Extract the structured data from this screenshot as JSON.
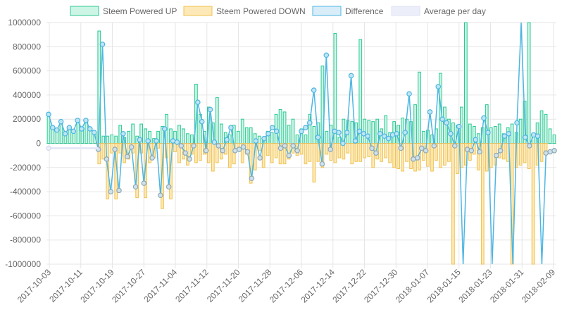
{
  "chart_data": {
    "type": "bar",
    "title": "",
    "xlabel": "",
    "ylabel": "",
    "ylim": [
      -1000000,
      1000000
    ],
    "y_ticks": [
      1000000,
      800000,
      600000,
      400000,
      200000,
      0,
      -200000,
      -400000,
      -600000,
      -800000,
      -1000000
    ],
    "x_tick_labels": [
      "2017-10-03",
      "2017-10-11",
      "2017-10-19",
      "2017-10-27",
      "2017-11-04",
      "2017-11-12",
      "2017-11-20",
      "2017-11-28",
      "2017-12-06",
      "2017-12-14",
      "2017-12-22",
      "2017-12-30",
      "2018-01-07",
      "2018-01-15",
      "2018-01-23",
      "2018-01-31",
      "2018-02-09"
    ],
    "legend_position": "top-center",
    "grid": true,
    "series": [
      {
        "name": "Steem Powered UP",
        "kind": "bar",
        "fill": "#cdf5e6",
        "stroke": "#2bc993",
        "values": [
          240000,
          120000,
          110000,
          180000,
          80000,
          130000,
          100000,
          190000,
          120000,
          190000,
          110000,
          90000,
          930000,
          60000,
          60000,
          70000,
          60000,
          150000,
          50000,
          100000,
          160000,
          60000,
          160000,
          120000,
          100000,
          40000,
          100000,
          140000,
          240000,
          120000,
          100000,
          150000,
          120000,
          80000,
          70000,
          490000,
          240000,
          100000,
          300000,
          170000,
          380000,
          160000,
          90000,
          70000,
          150000,
          100000,
          200000,
          130000,
          130000,
          80000,
          60000,
          50000,
          100000,
          90000,
          240000,
          280000,
          260000,
          150000,
          200000,
          70000,
          120000,
          70000,
          240000,
          140000,
          170000,
          640000,
          100000,
          150000,
          910000,
          50000,
          200000,
          190000,
          180000,
          170000,
          860000,
          200000,
          190000,
          180000,
          200000,
          120000,
          230000,
          90000,
          180000,
          150000,
          210000,
          200000,
          180000,
          320000,
          590000,
          100000,
          110000,
          70000,
          120000,
          580000,
          300000,
          200000,
          170000,
          150000,
          300000,
          1000000,
          160000,
          140000,
          80000,
          130000,
          320000,
          130000,
          140000,
          160000,
          80000,
          130000,
          160000,
          90000,
          200000,
          350000,
          1000000,
          60000,
          170000,
          270000,
          240000,
          120000,
          70000
        ],
        "down_values": []
      },
      {
        "name": "Steem Powered DOWN",
        "kind": "bar",
        "fill": "#fde9b7",
        "stroke": "#f0c24f",
        "values": [
          0,
          0,
          0,
          0,
          0,
          0,
          0,
          0,
          0,
          0,
          0,
          0,
          -170000,
          -130000,
          -460000,
          -80000,
          -460000,
          -80000,
          -160000,
          -130000,
          -80000,
          -450000,
          -80000,
          -450000,
          -160000,
          -120000,
          -40000,
          -540000,
          -120000,
          -460000,
          -70000,
          -160000,
          -130000,
          -180000,
          -90000,
          -160000,
          -140000,
          -90000,
          -160000,
          -230000,
          -160000,
          -130000,
          -90000,
          -200000,
          -170000,
          -60000,
          -160000,
          -90000,
          -330000,
          -220000,
          -60000,
          -200000,
          -100000,
          -160000,
          -120000,
          -170000,
          -170000,
          -130000,
          -80000,
          -100000,
          -90000,
          -170000,
          -150000,
          -320000,
          -150000,
          -200000,
          -90000,
          -140000,
          -160000,
          -120000,
          -130000,
          -80000,
          -170000,
          -150000,
          -150000,
          -120000,
          -110000,
          -200000,
          -130000,
          -150000,
          -120000,
          -160000,
          -200000,
          -210000,
          -230000,
          -150000,
          -210000,
          -230000,
          -220000,
          -140000,
          -190000,
          -230000,
          -140000,
          -200000,
          -180000,
          -150000,
          -1000000,
          -250000,
          -200000,
          -180000,
          -140000,
          -90000,
          -220000,
          -1000000,
          -230000,
          -200000,
          -180000,
          -120000,
          -130000,
          -150000,
          -1000000,
          -200000,
          -180000,
          -160000,
          -210000,
          -1000000,
          -180000,
          -150000,
          -90000
        ]
      }
    ],
    "difference": {
      "name": "Difference",
      "kind": "line",
      "color": "#4db6e3",
      "values": [
        240000,
        130000,
        110000,
        180000,
        80000,
        130000,
        100000,
        190000,
        120000,
        190000,
        120000,
        90000,
        -50000,
        820000,
        -130000,
        -400000,
        -50000,
        -390000,
        80000,
        -110000,
        -30000,
        -360000,
        30000,
        -330000,
        20000,
        -120000,
        20000,
        -430000,
        120000,
        -360000,
        20000,
        10000,
        -20000,
        -80000,
        -130000,
        -20000,
        340000,
        180000,
        -60000,
        280000,
        10000,
        -20000,
        -60000,
        30000,
        130000,
        -60000,
        -50000,
        -30000,
        -70000,
        -290000,
        20000,
        -120000,
        40000,
        80000,
        130000,
        100000,
        -40000,
        -20000,
        -100000,
        -20000,
        -60000,
        100000,
        130000,
        170000,
        440000,
        50000,
        -170000,
        730000,
        -50000,
        100000,
        90000,
        0,
        90000,
        560000,
        20000,
        100000,
        80000,
        60000,
        -40000,
        -80000,
        80000,
        60000,
        40000,
        70000,
        80000,
        -40000,
        90000,
        410000,
        -130000,
        -120000,
        -40000,
        -60000,
        260000,
        -20000,
        470000,
        200000,
        170000,
        80000,
        -20000,
        140000,
        -1000000,
        -50000,
        -60000,
        30000,
        -70000,
        210000,
        90000,
        -1000000,
        -100000,
        -60000,
        60000,
        80000,
        -1000000,
        170000,
        1000000,
        50000,
        -20000,
        70000,
        60000,
        -1000000,
        -80000,
        -70000,
        -60000
      ]
    },
    "average": {
      "name": "Average per day",
      "kind": "line",
      "color": "#e5e8f7",
      "values_note": "",
      "start_value": -40000,
      "end_index": 12
    }
  },
  "legend": [
    {
      "label": "Steem Powered UP",
      "fill": "#cdf5e6",
      "stroke": "#2bc993"
    },
    {
      "label": "Steem Powered DOWN",
      "fill": "#fde9b7",
      "stroke": "#f0c24f"
    },
    {
      "label": "Difference",
      "fill": "#d8edf8",
      "stroke": "#4db6e3"
    },
    {
      "label": "Average per day",
      "fill": "#eceef9",
      "stroke": "#dfe2f5"
    }
  ],
  "colors": {
    "grid": "#e6e6e6",
    "axis_text": "#666666",
    "zero_line": "#bdbdbd"
  }
}
